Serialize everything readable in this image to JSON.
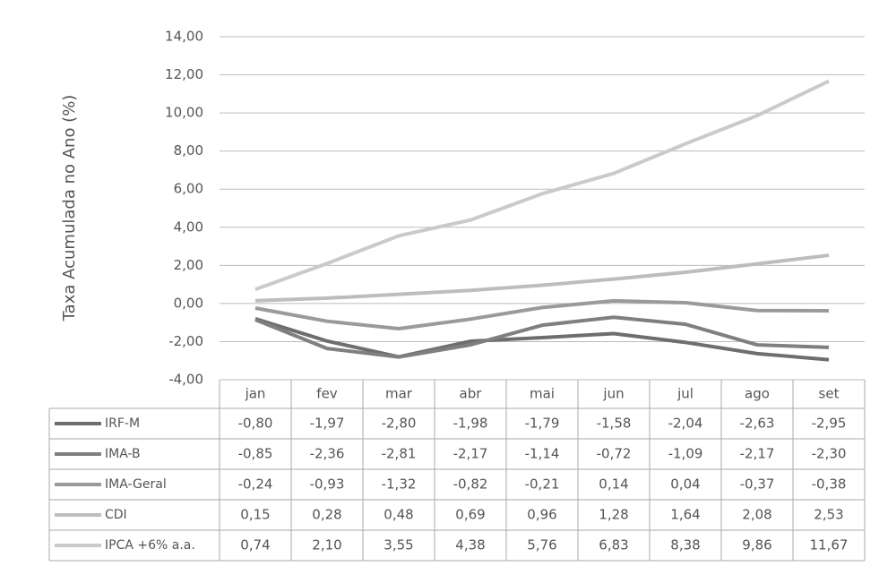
{
  "chart_data": {
    "type": "line",
    "y_label": "Taxa Acumulada no Ano (%)",
    "categories": [
      "jan",
      "fev",
      "mar",
      "abr",
      "mai",
      "jun",
      "jul",
      "ago",
      "set"
    ],
    "series": [
      {
        "name": "IRF-M",
        "color": "#6e6e6e",
        "values": [
          -0.8,
          -1.97,
          -2.8,
          -1.98,
          -1.79,
          -1.58,
          -2.04,
          -2.63,
          -2.95
        ],
        "value_labels": [
          "-0,80",
          "-1,97",
          "-2,80",
          "-1,98",
          "-1,79",
          "-1,58",
          "-2,04",
          "-2,63",
          "-2,95"
        ]
      },
      {
        "name": "IMA-B",
        "color": "#7f7f7f",
        "values": [
          -0.85,
          -2.36,
          -2.81,
          -2.17,
          -1.14,
          -0.72,
          -1.09,
          -2.17,
          -2.3
        ],
        "value_labels": [
          "-0,85",
          "-2,36",
          "-2,81",
          "-2,17",
          "-1,14",
          "-0,72",
          "-1,09",
          "-2,17",
          "-2,30"
        ]
      },
      {
        "name": "IMA-Geral",
        "color": "#9a9a9a",
        "values": [
          -0.24,
          -0.93,
          -1.32,
          -0.82,
          -0.21,
          0.14,
          0.04,
          -0.37,
          -0.38
        ],
        "value_labels": [
          "-0,24",
          "-0,93",
          "-1,32",
          "-0,82",
          "-0,21",
          "0,14",
          "0,04",
          "-0,37",
          "-0,38"
        ]
      },
      {
        "name": "CDI",
        "color": "#bdbdbd",
        "values": [
          0.15,
          0.28,
          0.48,
          0.69,
          0.96,
          1.28,
          1.64,
          2.08,
          2.53
        ],
        "value_labels": [
          "0,15",
          "0,28",
          "0,48",
          "0,69",
          "0,96",
          "1,28",
          "1,64",
          "2,08",
          "2,53"
        ]
      },
      {
        "name": "IPCA +6% a.a.",
        "color": "#cacaca",
        "values": [
          0.74,
          2.1,
          3.55,
          4.38,
          5.76,
          6.83,
          8.38,
          9.86,
          11.67
        ],
        "value_labels": [
          "0,74",
          "2,10",
          "3,55",
          "4,38",
          "5,76",
          "6,83",
          "8,38",
          "9,86",
          "11,67"
        ]
      }
    ],
    "ylim": [
      -4,
      14
    ],
    "yticks": [
      {
        "value": -4,
        "label": "-4,00"
      },
      {
        "value": -2,
        "label": "-2,00"
      },
      {
        "value": 0,
        "label": "0,00"
      },
      {
        "value": 2,
        "label": "2,00"
      },
      {
        "value": 4,
        "label": "4,00"
      },
      {
        "value": 6,
        "label": "6,00"
      },
      {
        "value": 8,
        "label": "8,00"
      },
      {
        "value": 10,
        "label": "10,00"
      },
      {
        "value": 12,
        "label": "12,00"
      },
      {
        "value": 14,
        "label": "14,00"
      }
    ],
    "grid": true
  }
}
